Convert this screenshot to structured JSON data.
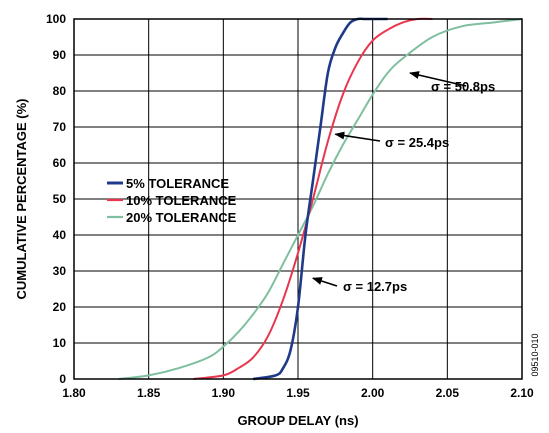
{
  "chart_data": {
    "type": "line",
    "xlabel": "GROUP DELAY (ns)",
    "ylabel": "CUMULATIVE PERCENTAGE  (%)",
    "xlim": [
      1.8,
      2.1
    ],
    "ylim": [
      0,
      100
    ],
    "x_ticks": [
      "1.80",
      "1.85",
      "1.90",
      "1.95",
      "2.00",
      "2.05",
      "2.10"
    ],
    "y_ticks": [
      "0",
      "10",
      "20",
      "30",
      "40",
      "50",
      "60",
      "70",
      "80",
      "90",
      "100"
    ],
    "grid": true,
    "legend_position": "center-left",
    "series": [
      {
        "name": "5% TOLERANCE",
        "color": "#1f3a8a",
        "x": [
          1.92,
          1.935,
          1.94,
          1.945,
          1.95,
          1.955,
          1.96,
          1.965,
          1.97,
          1.975,
          1.98,
          1.985,
          1.99,
          1.995,
          2.0,
          2.01
        ],
        "y": [
          0,
          1,
          3,
          8,
          20,
          40,
          55,
          70,
          85,
          92,
          96,
          99,
          100,
          100,
          100,
          100
        ]
      },
      {
        "name": "10% TOLERANCE",
        "color": "#e8364f",
        "x": [
          1.88,
          1.9,
          1.91,
          1.92,
          1.93,
          1.94,
          1.95,
          1.96,
          1.97,
          1.98,
          1.99,
          2.0,
          2.01,
          2.02,
          2.03,
          2.04
        ],
        "y": [
          0,
          1,
          3,
          6,
          12,
          22,
          35,
          50,
          66,
          79,
          88,
          94,
          97,
          99,
          100,
          100
        ]
      },
      {
        "name": "20% TOLERANCE",
        "color": "#7fbf9f",
        "x": [
          1.83,
          1.85,
          1.87,
          1.89,
          1.9,
          1.91,
          1.92,
          1.93,
          1.94,
          1.95,
          1.96,
          1.97,
          1.98,
          1.99,
          2.0,
          2.01,
          2.02,
          2.04,
          2.06,
          2.08,
          2.1
        ],
        "y": [
          0,
          1,
          3,
          6,
          9,
          13,
          18,
          24,
          32,
          40,
          48,
          57,
          65,
          72,
          79,
          85,
          89,
          95,
          98,
          99,
          100
        ]
      }
    ],
    "annotations": [
      {
        "text": "σ = 50.8ps",
        "arrow_to": [
          2.025,
          85
        ]
      },
      {
        "text": "σ = 25.4ps",
        "arrow_to": [
          1.975,
          68
        ]
      },
      {
        "text": "σ = 12.7ps",
        "arrow_to": [
          1.96,
          28
        ]
      }
    ],
    "figure_id": "09510-010"
  }
}
